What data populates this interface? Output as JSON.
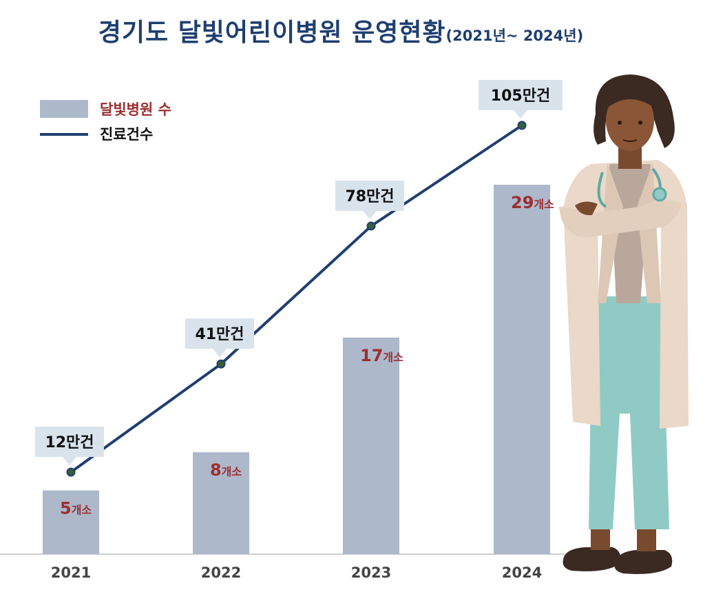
{
  "title": "경기도 달빛어린이병원 운영현황",
  "title_suffix": "(2021년~ 2024년)",
  "colors": {
    "bar": "#adb8cb",
    "line": "#1f3f70",
    "marker": "#3a5f3a",
    "bar_label": "#9b2f2f",
    "callout_bg": "#d9e3ec",
    "title": "#1f3f70",
    "axis": "#cfcfcf"
  },
  "legend": [
    {
      "label": "달빛병원 수",
      "kind": "bar"
    },
    {
      "label": "진료건수",
      "kind": "line"
    }
  ],
  "chart_data": {
    "type": "bar",
    "title": "경기도 달빛어린이병원 운영현황(2021년~ 2024년)",
    "categories": [
      "2021",
      "2022",
      "2023",
      "2024"
    ],
    "series": [
      {
        "name": "달빛병원 수",
        "type": "bar",
        "values": [
          5,
          8,
          17,
          29
        ],
        "labels": [
          "5",
          "8",
          "17",
          "29"
        ],
        "unit": "개소"
      },
      {
        "name": "진료건수",
        "type": "line",
        "values": [
          12,
          41,
          78,
          105
        ],
        "labels": [
          "12만건",
          "41만건",
          "78만건",
          "105만건"
        ]
      }
    ],
    "legend_position": "top-left",
    "grid": false
  }
}
